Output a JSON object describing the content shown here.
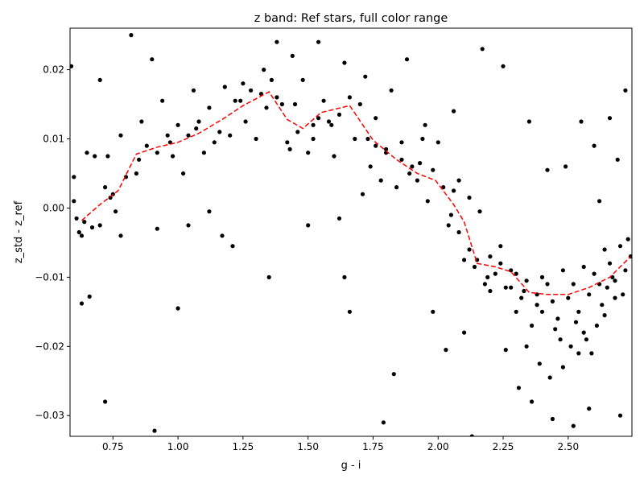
{
  "chart_data": {
    "type": "scatter",
    "title": "z band: Ref stars, full color range",
    "xlabel": "g - i",
    "ylabel": "z_std - z_ref",
    "xlim": [
      0.585,
      2.745
    ],
    "ylim": [
      -0.033,
      0.026
    ],
    "xticks": [
      0.75,
      1.0,
      1.25,
      1.5,
      1.75,
      2.0,
      2.25,
      2.5
    ],
    "xtick_labels": [
      "0.75",
      "1.00",
      "1.25",
      "1.50",
      "1.75",
      "2.00",
      "2.25",
      "2.50"
    ],
    "yticks": [
      -0.03,
      -0.02,
      -0.01,
      0.0,
      0.01,
      0.02
    ],
    "ytick_labels": [
      "−0.03",
      "−0.02",
      "−0.01",
      "0.00",
      "0.01",
      "0.02"
    ],
    "grid": false,
    "legend": "none",
    "colors": {
      "points": "#000000",
      "trend": "#ff0000"
    },
    "series": [
      {
        "kind": "points",
        "style": "black-dots",
        "x": [
          0.59,
          0.6,
          0.61,
          0.62,
          0.63,
          0.64,
          0.65,
          0.66,
          0.67,
          0.68,
          0.7,
          0.72,
          0.73,
          0.75,
          0.76,
          0.78,
          0.8,
          0.82,
          0.84,
          0.86,
          0.88,
          0.9,
          0.92,
          0.94,
          0.96,
          0.98,
          1.0,
          1.02,
          1.04,
          1.06,
          1.08,
          1.1,
          1.12,
          1.14,
          1.16,
          1.18,
          1.2,
          1.22,
          1.24,
          1.26,
          1.28,
          1.3,
          1.32,
          1.34,
          1.36,
          1.38,
          1.4,
          1.42,
          1.44,
          1.46,
          1.48,
          1.5,
          1.52,
          1.54,
          1.56,
          1.58,
          1.6,
          1.62,
          1.64,
          1.66,
          1.68,
          1.7,
          1.72,
          1.74,
          1.76,
          1.78,
          1.8,
          1.82,
          1.84,
          1.86,
          1.88,
          1.9,
          1.92,
          1.94,
          1.96,
          1.98,
          2.0,
          2.02,
          2.04,
          2.06,
          2.08,
          2.1,
          2.12,
          2.14,
          2.16,
          2.18,
          2.2,
          2.22,
          2.24,
          2.26,
          2.28,
          2.3,
          2.32,
          2.34,
          2.36,
          2.38,
          2.4,
          2.42,
          2.44,
          2.46,
          2.48,
          2.5,
          2.52,
          2.54,
          2.56,
          2.58,
          2.6,
          2.62,
          2.64,
          2.66,
          2.68,
          2.7,
          2.72,
          2.74,
          0.63,
          0.7,
          0.78,
          0.92,
          1.0,
          1.12,
          1.38,
          1.5,
          1.62,
          1.66,
          1.79,
          1.83,
          2.03,
          2.1,
          2.13,
          2.2,
          2.31,
          2.36,
          2.44,
          2.52,
          2.58,
          2.7,
          0.72,
          1.17,
          1.35,
          1.64,
          2.62,
          0.74,
          0.85,
          1.21,
          1.33,
          1.43,
          1.54,
          1.71,
          1.8,
          1.86,
          1.95,
          2.06,
          2.17,
          2.25,
          2.35,
          2.42,
          2.49,
          2.55,
          2.6,
          2.66,
          2.69,
          2.72,
          0.6,
          0.91,
          1.04,
          1.59,
          1.98,
          2.26
        ],
        "y": [
          0.0205,
          0.0045,
          -0.0015,
          -0.0035,
          -0.0138,
          -0.002,
          0.008,
          -0.0128,
          -0.0028,
          0.0075,
          0.0185,
          0.003,
          0.0075,
          0.002,
          -0.0005,
          0.0105,
          0.0045,
          0.025,
          0.005,
          0.0125,
          0.009,
          0.0215,
          0.008,
          0.0155,
          0.0105,
          0.0075,
          0.012,
          0.005,
          0.0105,
          0.017,
          0.0125,
          0.008,
          0.0145,
          0.0095,
          0.011,
          0.0175,
          0.0105,
          0.0155,
          0.0155,
          0.0125,
          0.017,
          0.01,
          0.0165,
          0.0145,
          0.0185,
          0.016,
          0.015,
          0.0095,
          0.022,
          0.011,
          0.0185,
          0.008,
          0.01,
          0.013,
          0.0155,
          0.0125,
          0.0075,
          0.0135,
          0.021,
          0.016,
          0.01,
          0.015,
          0.019,
          0.006,
          0.013,
          0.004,
          0.008,
          0.017,
          0.003,
          0.007,
          0.0215,
          0.006,
          0.004,
          0.01,
          0.001,
          0.0055,
          0.0095,
          0.003,
          -0.0025,
          0.0025,
          0.004,
          -0.0075,
          0.0015,
          -0.0085,
          -0.0005,
          -0.011,
          -0.007,
          -0.0095,
          -0.0055,
          -0.0115,
          -0.009,
          -0.015,
          -0.013,
          -0.0105,
          -0.017,
          -0.0125,
          -0.015,
          -0.011,
          -0.0135,
          -0.016,
          -0.009,
          -0.013,
          -0.011,
          -0.015,
          -0.0085,
          -0.0125,
          -0.0095,
          -0.011,
          -0.006,
          -0.008,
          -0.0105,
          -0.0055,
          -0.009,
          -0.007,
          -0.004,
          -0.0025,
          -0.004,
          -0.003,
          -0.0145,
          -0.0005,
          0.024,
          -0.0025,
          -0.0015,
          -0.015,
          -0.031,
          -0.024,
          -0.0205,
          -0.018,
          -0.033,
          -0.012,
          -0.026,
          -0.028,
          -0.0305,
          -0.0315,
          -0.029,
          -0.03,
          -0.028,
          -0.004,
          -0.01,
          -0.01,
          0.001,
          0.0015,
          0.007,
          -0.0055,
          0.02,
          0.0085,
          0.024,
          0.002,
          0.0085,
          0.0095,
          0.012,
          0.014,
          0.023,
          0.0205,
          0.0125,
          0.0055,
          0.006,
          0.0125,
          0.009,
          0.013,
          0.007,
          0.017,
          0.001,
          -0.0322,
          -0.0025,
          0.012,
          -0.015,
          -0.0205
        ],
        "x_extra": [
          0.97,
          1.07,
          1.25,
          1.45,
          1.52,
          1.73,
          1.93,
          2.08,
          2.12,
          2.24,
          2.3,
          2.33,
          2.38,
          2.4,
          2.45,
          2.47,
          2.51,
          2.53,
          2.56,
          2.59,
          2.63,
          2.65,
          2.67,
          2.71,
          2.73,
          2.34,
          2.39,
          2.43,
          2.48,
          2.54,
          2.57,
          2.61,
          2.64,
          2.68,
          2.28,
          2.19,
          2.15,
          2.05,
          1.89,
          1.76
        ],
        "y_extra": [
          0.0095,
          0.0115,
          0.018,
          0.015,
          0.012,
          0.01,
          0.0065,
          -0.0035,
          -0.006,
          -0.008,
          -0.0095,
          -0.012,
          -0.014,
          -0.01,
          -0.0175,
          -0.019,
          -0.02,
          -0.0165,
          -0.018,
          -0.021,
          -0.014,
          -0.0115,
          -0.01,
          -0.0125,
          -0.0045,
          -0.02,
          -0.0225,
          -0.0245,
          -0.023,
          -0.021,
          -0.019,
          -0.017,
          -0.0155,
          -0.013,
          -0.0115,
          -0.01,
          -0.0075,
          -0.001,
          0.005,
          0.009
        ]
      },
      {
        "kind": "trend",
        "style": "red-dashed",
        "x": [
          0.63,
          0.7,
          0.77,
          0.84,
          0.92,
          1.0,
          1.08,
          1.17,
          1.25,
          1.35,
          1.42,
          1.48,
          1.55,
          1.66,
          1.75,
          1.84,
          1.92,
          1.99,
          2.06,
          2.1,
          2.15,
          2.22,
          2.28,
          2.35,
          2.42,
          2.5,
          2.58,
          2.66,
          2.74
        ],
        "y": [
          -0.0018,
          0.0005,
          0.0025,
          0.0078,
          0.0088,
          0.0095,
          0.0108,
          0.0128,
          0.0148,
          0.0168,
          0.0128,
          0.0115,
          0.0138,
          0.0148,
          0.0098,
          0.007,
          0.005,
          0.004,
          0.0005,
          -0.002,
          -0.008,
          -0.0085,
          -0.0092,
          -0.0122,
          -0.0125,
          -0.0125,
          -0.0115,
          -0.01,
          -0.007
        ]
      }
    ]
  }
}
